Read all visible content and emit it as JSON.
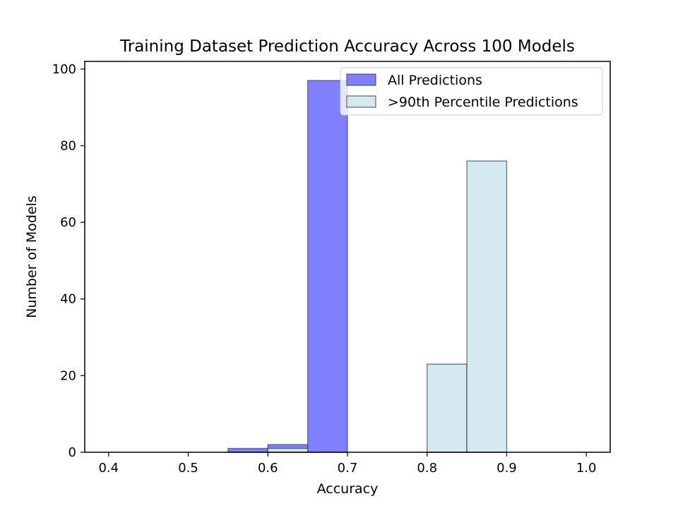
{
  "chart_data": {
    "type": "bar",
    "title": "Training Dataset Prediction Accuracy Across 100 Models",
    "xlabel": "Accuracy",
    "ylabel": "Number of Models",
    "xlim": [
      0.37,
      1.03
    ],
    "ylim": [
      0,
      102
    ],
    "x_ticks": [
      "0.4",
      "0.5",
      "0.6",
      "0.7",
      "0.8",
      "0.9",
      "1.0"
    ],
    "y_ticks": [
      "0",
      "20",
      "40",
      "60",
      "80",
      "100"
    ],
    "bin_width": 0.05,
    "legend_position": "top-right",
    "grid": false,
    "series": [
      {
        "name": "All Predictions",
        "color": "#8080ff",
        "bins": [
          {
            "x0": 0.55,
            "x1": 0.6,
            "count": 1
          },
          {
            "x0": 0.6,
            "x1": 0.65,
            "count": 2
          },
          {
            "x0": 0.65,
            "x1": 0.7,
            "count": 97
          }
        ]
      },
      {
        "name": ">90th Percentile Predictions",
        "color": "#d4eaf0",
        "bins": [
          {
            "x0": 0.6,
            "x1": 0.65,
            "count": 1
          },
          {
            "x0": 0.8,
            "x1": 0.85,
            "count": 23
          },
          {
            "x0": 0.85,
            "x1": 0.9,
            "count": 76
          }
        ]
      }
    ]
  }
}
